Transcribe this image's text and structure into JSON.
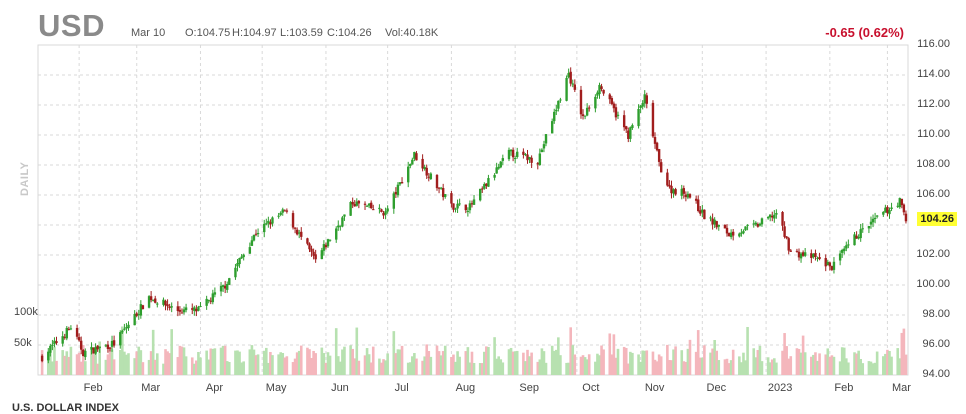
{
  "header": {
    "ticker": "USD",
    "date": "Mar 10",
    "open": "O:104.75",
    "high": "H:104.97",
    "low": "L:103.59",
    "close": "C:104.26",
    "volume": "Vol:40.18K",
    "change": "-0.65 (0.62%)",
    "last_price": "104.26",
    "timeframe": "DAILY",
    "footer_text": "U.S. DOLLAR INDEX"
  },
  "colors": {
    "up_candle": "#2e9e2e",
    "down_candle": "#a11d1d",
    "up_volume": "#b7e1b0",
    "down_volume": "#f4b6bc",
    "change_negative": "#c8102e",
    "last_price_highlight": "#ffff33",
    "grid": "#d9d9d9"
  },
  "chart_data": {
    "type": "candlestick",
    "title": "USD",
    "ylabel": "",
    "xlabel": "",
    "ylim": [
      94,
      116
    ],
    "yticks": [
      "116.00",
      "114.00",
      "112.00",
      "110.00",
      "108.00",
      "106.00",
      "102.00",
      "100.00",
      "98.00",
      "96.00",
      "94.00"
    ],
    "volume_labels": [
      "100k",
      "50k"
    ],
    "volume_ylim": [
      0,
      120000
    ],
    "x_labels": [
      "Feb",
      "Mar",
      "Apr",
      "May",
      "Jun",
      "Jul",
      "Aug",
      "Sep",
      "Oct",
      "Nov",
      "Dec",
      "2023",
      "Feb",
      "Mar"
    ],
    "grid": true,
    "monthly_close_path": [
      {
        "date": "2022-01-14",
        "close": 95.2
      },
      {
        "date": "2022-01-28",
        "close": 97.2
      },
      {
        "date": "2022-02-03",
        "close": 95.5
      },
      {
        "date": "2022-02-18",
        "close": 96.1
      },
      {
        "date": "2022-03-07",
        "close": 99.2
      },
      {
        "date": "2022-03-21",
        "close": 98.3
      },
      {
        "date": "2022-03-31",
        "close": 98.3
      },
      {
        "date": "2022-04-13",
        "close": 100.0
      },
      {
        "date": "2022-04-28",
        "close": 103.5
      },
      {
        "date": "2022-05-12",
        "close": 104.9
      },
      {
        "date": "2022-05-27",
        "close": 101.6
      },
      {
        "date": "2022-06-14",
        "close": 105.5
      },
      {
        "date": "2022-06-30",
        "close": 104.8
      },
      {
        "date": "2022-07-14",
        "close": 108.7
      },
      {
        "date": "2022-08-01",
        "close": 105.3
      },
      {
        "date": "2022-08-10",
        "close": 105.2
      },
      {
        "date": "2022-08-29",
        "close": 108.8
      },
      {
        "date": "2022-09-12",
        "close": 108.3
      },
      {
        "date": "2022-09-27",
        "close": 114.1
      },
      {
        "date": "2022-10-04",
        "close": 111.1
      },
      {
        "date": "2022-10-12",
        "close": 113.3
      },
      {
        "date": "2022-10-26",
        "close": 110.0
      },
      {
        "date": "2022-11-03",
        "close": 112.5
      },
      {
        "date": "2022-11-10",
        "close": 108.1
      },
      {
        "date": "2022-11-15",
        "close": 106.4
      },
      {
        "date": "2022-11-24",
        "close": 106.1
      },
      {
        "date": "2022-12-02",
        "close": 104.6
      },
      {
        "date": "2022-12-14",
        "close": 103.4
      },
      {
        "date": "2022-12-28",
        "close": 104.0
      },
      {
        "date": "2023-01-06",
        "close": 104.8
      },
      {
        "date": "2023-01-13",
        "close": 102.2
      },
      {
        "date": "2023-01-25",
        "close": 101.8
      },
      {
        "date": "2023-02-02",
        "close": 101.2
      },
      {
        "date": "2023-02-14",
        "close": 103.3
      },
      {
        "date": "2023-02-28",
        "close": 104.9
      },
      {
        "date": "2023-03-07",
        "close": 105.6
      },
      {
        "date": "2023-03-10",
        "close": 104.26
      }
    ]
  }
}
